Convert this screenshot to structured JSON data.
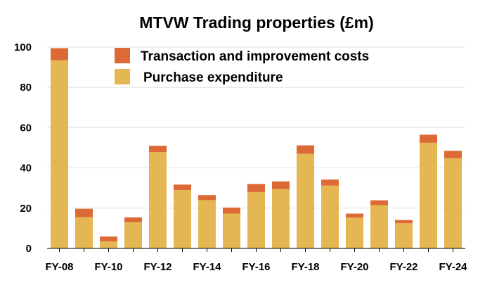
{
  "chart_data": {
    "type": "bar",
    "stacked": true,
    "title": "MTVW Trading properties (£m)",
    "xlabel": "",
    "ylabel": "",
    "ylim": [
      0,
      100
    ],
    "yticks": [
      "0",
      "20",
      "40",
      "60",
      "80",
      "100"
    ],
    "grid": true,
    "legend_position": "top-center",
    "categories": [
      "FY-08",
      "FY-09",
      "FY-10",
      "FY-11",
      "FY-12",
      "FY-13",
      "FY-14",
      "FY-15",
      "FY-16",
      "FY-17",
      "FY-18",
      "FY-19",
      "FY-20",
      "FY-21",
      "FY-22",
      "FY-23",
      "FY-24"
    ],
    "tick_labels": [
      "FY-08",
      "",
      "FY-10",
      "",
      "FY-12",
      "",
      "FY-14",
      "",
      "FY-16",
      "",
      "FY-18",
      "",
      "FY-20",
      "",
      "FY-22",
      "",
      "FY-24"
    ],
    "series": [
      {
        "name": "Purchase expenditure",
        "color": "#e5b753",
        "values": [
          93.5,
          15.5,
          3.5,
          13.0,
          47.8,
          29.0,
          24.0,
          17.3,
          28.0,
          29.5,
          47.0,
          31.2,
          15.3,
          21.5,
          12.5,
          52.5,
          44.8
        ]
      },
      {
        "name": "Transaction and improvement costs",
        "color": "#dd6a36",
        "values": [
          6.0,
          4.2,
          2.4,
          2.4,
          3.2,
          2.7,
          2.5,
          3.0,
          4.0,
          3.8,
          4.2,
          3.0,
          2.0,
          2.4,
          1.6,
          4.0,
          3.7
        ]
      }
    ]
  }
}
